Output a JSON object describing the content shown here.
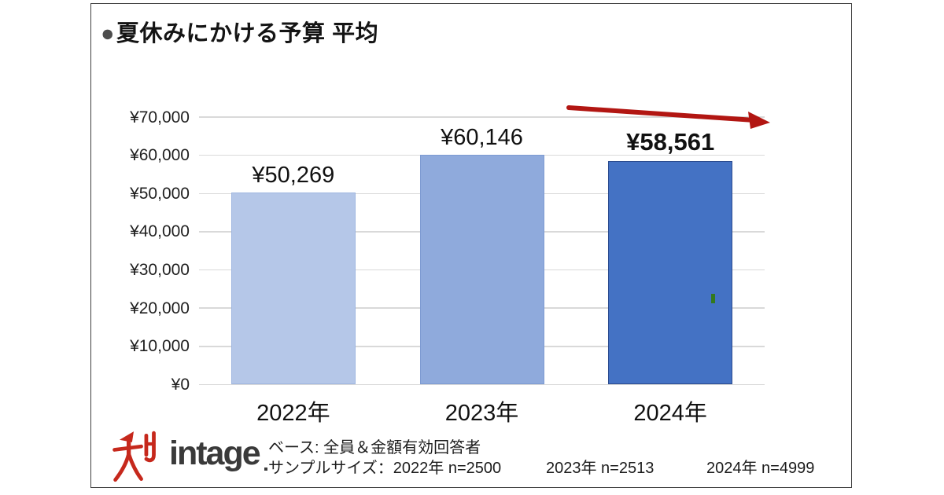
{
  "title": {
    "bullet": "●",
    "text": "夏休みにかける予算 平均"
  },
  "chart_data": {
    "type": "bar",
    "title": "夏休みにかける予算 平均",
    "categories": [
      "2022年",
      "2023年",
      "2024年"
    ],
    "values": [
      50269,
      60146,
      58561
    ],
    "value_labels": [
      "¥50,269",
      "¥60,146",
      "¥58,561"
    ],
    "emphasized_category": "2024年",
    "xlabel": "",
    "ylabel": "",
    "ylim": [
      0,
      70000
    ],
    "ytick_step": 10000,
    "ytick_labels": [
      "¥0",
      "¥10,000",
      "¥20,000",
      "¥30,000",
      "¥40,000",
      "¥50,000",
      "¥60,000",
      "¥70,000"
    ],
    "grid": true,
    "legend": "none",
    "bar_colors": [
      "#b5c7e8",
      "#8faadc",
      "#4472c4"
    ],
    "bar_border_colors": [
      "#9fb6e0",
      "#7d9ad2",
      "#2b4b8f"
    ],
    "annotation": "red arrow sloping slightly downward from above 2023 bar to above 2024 bar"
  },
  "colors": {
    "grid": "#d9d9d9",
    "arrow_red": "#b21612",
    "frame_border": "#3f3f3f",
    "logo_red": "#c6281c",
    "logo_gray": "#3a3a3a"
  },
  "footer": {
    "logo_text": "intage",
    "note_line1": "ベース: 全員＆金額有効回答者",
    "note_line2a": "サンプルサイズ：2022年 n=2500",
    "note_line2b": "2023年 n=2513",
    "note_line2c": "2024年 n=4999"
  }
}
